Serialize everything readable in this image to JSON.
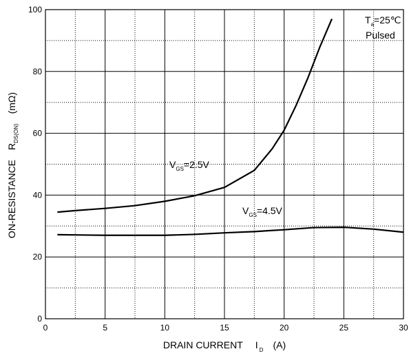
{
  "chart_data": {
    "type": "line",
    "x_label": {
      "main": "DRAIN CURRENT",
      "symbol": "I",
      "sub": "D",
      "unit": "(A)"
    },
    "y_label": {
      "main": "ON-RESISTANCE",
      "symbol": "R",
      "sub": "DS(ON)",
      "unit": "(mΩ)"
    },
    "xlim": [
      0,
      30
    ],
    "ylim": [
      0,
      100
    ],
    "xticks": [
      0,
      5,
      10,
      15,
      20,
      25,
      30
    ],
    "yticks": [
      0,
      20,
      40,
      60,
      80,
      100
    ],
    "x_minor_ticks": [
      2.5,
      7.5,
      12.5,
      17.5,
      22.5,
      27.5
    ],
    "y_minor_ticks": [
      10,
      30,
      50,
      70,
      90
    ],
    "grid": true,
    "conditions": {
      "symbol": "T",
      "sub": "a",
      "value": "=25℃",
      "mode": "Pulsed"
    },
    "series": [
      {
        "name": {
          "symbol": "V",
          "sub": "GS",
          "value": "=2.5V"
        },
        "color": "#000000",
        "x": [
          1,
          2.5,
          5,
          7.5,
          10,
          12.5,
          15,
          17.5,
          19,
          20,
          21,
          22,
          23,
          24
        ],
        "values": [
          34.5,
          35,
          35.7,
          36.6,
          38,
          39.8,
          42.5,
          48,
          55,
          61,
          69,
          78,
          88,
          97
        ]
      },
      {
        "name": {
          "symbol": "V",
          "sub": "GS",
          "value": "=4.5V"
        },
        "color": "#000000",
        "x": [
          1,
          5,
          10,
          12.5,
          15,
          17.5,
          20,
          22.5,
          25,
          27.5,
          30
        ],
        "values": [
          27.2,
          27,
          27,
          27.3,
          27.8,
          28.2,
          28.8,
          29.5,
          29.6,
          29,
          28
        ]
      }
    ]
  }
}
